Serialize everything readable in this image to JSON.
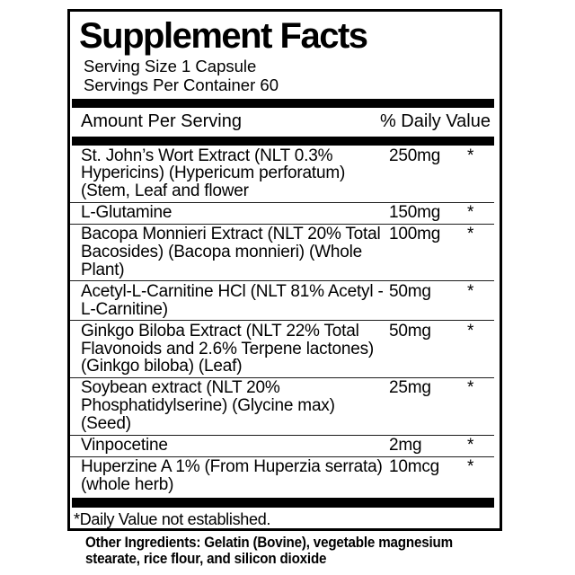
{
  "label": {
    "title": "Supplement Facts",
    "serving_size": "Serving Size 1 Capsule",
    "servings_per_container": "Servings Per Container 60",
    "columns": {
      "amount_header": "Amount Per Serving",
      "daily_value_header": "% Daily Value"
    },
    "rows": [
      {
        "name": "St. John’s Wort Extract (NLT 0.3% Hypericins) (Hypericum perforatum) (Stem, Leaf and flower",
        "amount": "250mg",
        "daily_value": "*"
      },
      {
        "name": "L-Glutamine",
        "amount": "150mg",
        "daily_value": "*"
      },
      {
        "name": "Bacopa Monnieri Extract (NLT 20% Total Bacosides) (Bacopa monnieri) (Whole Plant)",
        "amount": "100mg",
        "daily_value": "*"
      },
      {
        "name": "Acetyl-L-Carnitine HCl (NLT 81% Acetyl -L-Carnitine)",
        "amount": "50mg",
        "daily_value": "*"
      },
      {
        "name": "Ginkgo Biloba Extract (NLT 22% Total Flavonoids and 2.6% Terpene lactones) (Ginkgo biloba) (Leaf)",
        "amount": "50mg",
        "daily_value": "*"
      },
      {
        "name": "Soybean extract (NLT 20% Phosphatidylserine) (Glycine max) (Seed)",
        "amount": "25mg",
        "daily_value": "*"
      },
      {
        "name": "Vinpocetine",
        "amount": "2mg",
        "daily_value": "*"
      },
      {
        "name": "Huperzine A 1% (From Huperzia serrata) (whole herb)",
        "amount": "10mcg",
        "daily_value": "*"
      }
    ],
    "footnote": "*Daily Value not established.",
    "other_ingredients": "Other Ingredients: Gelatin (Bovine), vegetable magnesium stearate, rice flour, and silicon dioxide"
  },
  "colors": {
    "ink": "#000000",
    "divider": "#1c1c1c",
    "background": "#ffffff"
  }
}
